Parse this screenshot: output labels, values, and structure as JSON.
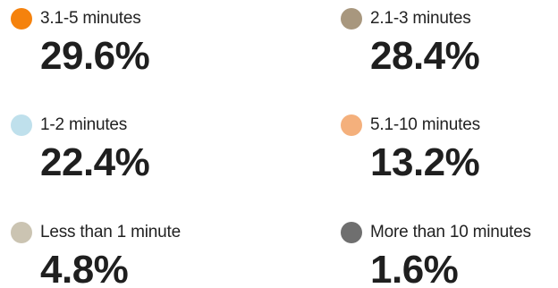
{
  "chart_data": {
    "type": "pie",
    "categories": [
      "3.1-5 minutes",
      "2.1-3 minutes",
      "1-2 minutes",
      "5.1-10 minutes",
      "Less than 1 minute",
      "More than 10 minutes"
    ],
    "values": [
      29.6,
      28.4,
      22.4,
      13.2,
      4.8,
      1.6
    ],
    "value_labels": [
      "29.6%",
      "28.4%",
      "22.4%",
      "13.2%",
      "4.8%",
      "1.6%"
    ],
    "colors": [
      "#f5820d",
      "#a8977e",
      "#bfe0ec",
      "#f4b07c",
      "#cbc4b2",
      "#6f6f6f"
    ],
    "legend_placement": "grid"
  }
}
